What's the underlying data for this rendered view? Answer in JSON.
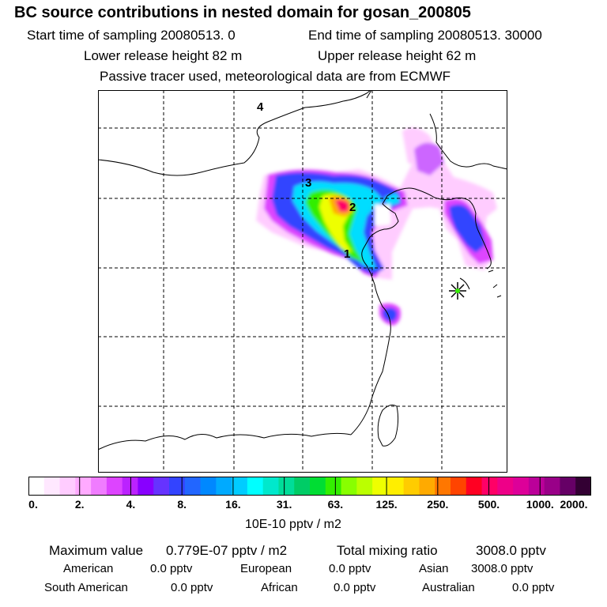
{
  "header": {
    "title": "BC  source contributions in nested domain for gosan_200805",
    "start_label": "Start time of sampling 20080513.     0",
    "end_label": "End time of sampling 20080513. 30000",
    "lower_label": "Lower release height   82 m",
    "upper_label": "Upper release height   62 m",
    "tracer_note": "Passive tracer used, meteorological data are from ECMWF"
  },
  "map": {
    "region_labels": [
      "4",
      "3",
      "2",
      "1"
    ],
    "receptor_marker": "receptor-star-icon",
    "colors": {
      "low": "#ff99ff",
      "mid": "#00ffff",
      "high": "#ff0066",
      "peak": "#330033"
    }
  },
  "colorbar": {
    "ticks": [
      "0.",
      "2.",
      "4.",
      "8.",
      "16.",
      "31.",
      "63.",
      "125.",
      "250.",
      "500.",
      "1000.",
      "2000."
    ],
    "unit": "10E-10 pptv / m2",
    "colors": [
      "#ffffff",
      "#ffe8ff",
      "#ffccff",
      "#ffaaff",
      "#f07cff",
      "#dd44ff",
      "#bb22ff",
      "#8800ff",
      "#6633ff",
      "#3344ff",
      "#2266ff",
      "#0088ff",
      "#00aaff",
      "#00ccff",
      "#00ffff",
      "#00e8cc",
      "#00dd99",
      "#00cc66",
      "#00dd33",
      "#33ee00",
      "#88ff00",
      "#bbff00",
      "#eeff00",
      "#ffee00",
      "#ffcc00",
      "#ffaa00",
      "#ff7700",
      "#ff4400",
      "#ff0022",
      "#ff0066",
      "#ee0088",
      "#dd0099",
      "#bb0099",
      "#990088",
      "#660066",
      "#330033"
    ]
  },
  "summary": {
    "max_label": "Maximum value",
    "max_value": "0.779E-07 pptv / m2",
    "total_label": "Total mixing ratio",
    "total_value": "3008.0 pptv",
    "regions": [
      {
        "name": "American",
        "value": "0.0 pptv"
      },
      {
        "name": "European",
        "value": "0.0 pptv"
      },
      {
        "name": "Asian",
        "value": "3008.0 pptv"
      },
      {
        "name": "South American",
        "value": "0.0 pptv"
      },
      {
        "name": "African",
        "value": "0.0 pptv"
      },
      {
        "name": "Australian",
        "value": "0.0 pptv"
      }
    ]
  }
}
